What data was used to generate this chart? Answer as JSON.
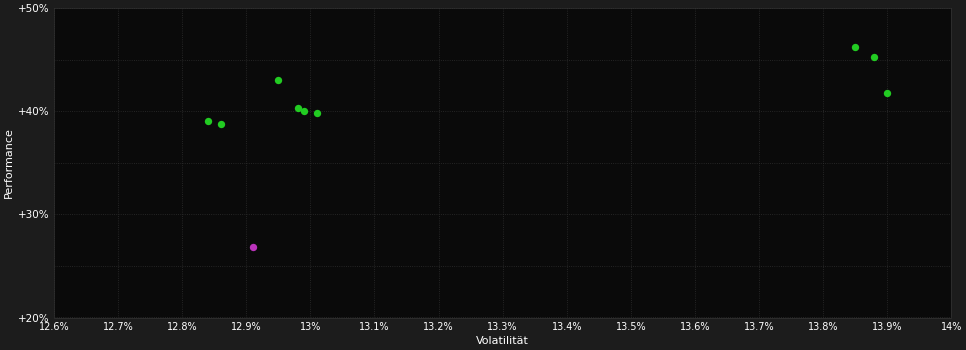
{
  "background_color": "#1c1c1c",
  "plot_bg_color": "#0a0a0a",
  "grid_color": "#2e2e2e",
  "text_color": "#ffffff",
  "xlabel": "Volatilität",
  "ylabel": "Performance",
  "xlim": [
    0.126,
    0.14
  ],
  "ylim": [
    0.2,
    0.5
  ],
  "xticks": [
    0.126,
    0.127,
    0.128,
    0.129,
    0.13,
    0.131,
    0.132,
    0.133,
    0.134,
    0.135,
    0.136,
    0.137,
    0.138,
    0.139,
    0.14
  ],
  "yticks": [
    0.2,
    0.25,
    0.3,
    0.35,
    0.4,
    0.45,
    0.5
  ],
  "ytick_labels": [
    "+20%",
    "",
    "+30%",
    "",
    "+40%",
    "",
    "+50%"
  ],
  "xtick_labels": [
    "12.6%",
    "12.7%",
    "12.8%",
    "12.9%",
    "13%",
    "13.1%",
    "13.2%",
    "13.3%",
    "13.4%",
    "13.5%",
    "13.6%",
    "13.7%",
    "13.8%",
    "13.9%",
    "14%"
  ],
  "green_points": [
    [
      0.1284,
      0.391
    ],
    [
      0.1286,
      0.388
    ],
    [
      0.1295,
      0.43
    ],
    [
      0.1298,
      0.403
    ],
    [
      0.1299,
      0.4
    ],
    [
      0.1301,
      0.398
    ],
    [
      0.1385,
      0.462
    ],
    [
      0.1388,
      0.453
    ],
    [
      0.139,
      0.418
    ]
  ],
  "magenta_points": [
    [
      0.1291,
      0.268
    ]
  ],
  "green_color": "#22cc22",
  "magenta_color": "#bb33bb",
  "marker_size": 28
}
